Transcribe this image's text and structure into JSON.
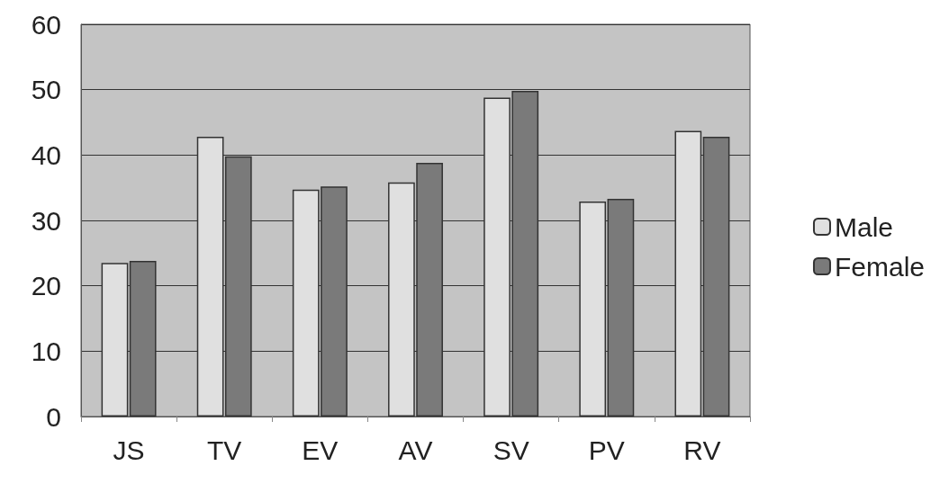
{
  "chart_data": {
    "type": "bar",
    "categories": [
      "JS",
      "TV",
      "EV",
      "AV",
      "SV",
      "PV",
      "RV"
    ],
    "series": [
      {
        "name": "Male",
        "color": "#e0e0e0",
        "values": [
          23.5,
          42.8,
          34.7,
          35.8,
          48.8,
          32.9,
          43.7
        ]
      },
      {
        "name": "Female",
        "color": "#7a7a7a",
        "values": [
          23.8,
          39.8,
          35.2,
          38.8,
          49.8,
          33.3,
          42.8
        ]
      }
    ],
    "ylim": [
      0,
      60
    ],
    "yticks": [
      0,
      10,
      20,
      30,
      40,
      50,
      60
    ],
    "grid": "y",
    "legend": "right"
  }
}
